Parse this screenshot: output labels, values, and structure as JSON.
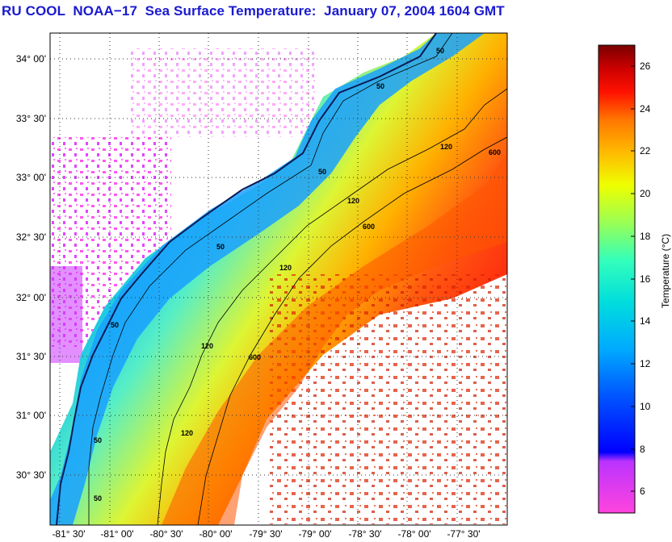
{
  "title": "RU COOL  NOAA−17  Sea Surface Temperature:  January 07, 2004 1604 GMT",
  "map": {
    "lon_ticks": [
      "-81° 30'",
      "-81° 00'",
      "-80° 30'",
      "-80° 00'",
      "-79° 30'",
      "-79° 00'",
      "-78° 30'",
      "-78° 00'",
      "-77° 30'"
    ],
    "lat_ticks": [
      "34° 00'",
      "33° 30'",
      "33° 00'",
      "32° 30'",
      "32° 00'",
      "31° 30'",
      "31° 00'",
      "30° 30'"
    ],
    "contour_labels": [
      "50",
      "50",
      "50",
      "50",
      "50",
      "50",
      "50",
      "120",
      "120",
      "120",
      "120",
      "120",
      "600",
      "600",
      "600"
    ],
    "grid": "dotted"
  },
  "colorbar": {
    "label": "Temperature (°C)",
    "ticks": [
      "26",
      "24",
      "22",
      "20",
      "18",
      "16",
      "14",
      "12",
      "10",
      "8",
      "6"
    ],
    "range": [
      5,
      27
    ],
    "colors": [
      "#ff33dd",
      "#cc33ff",
      "#3300ff",
      "#0066ff",
      "#00aaff",
      "#00ddee",
      "#33ffcc",
      "#99ff66",
      "#ffee00",
      "#ffaa00",
      "#ff6600",
      "#ff1100",
      "#cc0000",
      "#800000"
    ]
  }
}
